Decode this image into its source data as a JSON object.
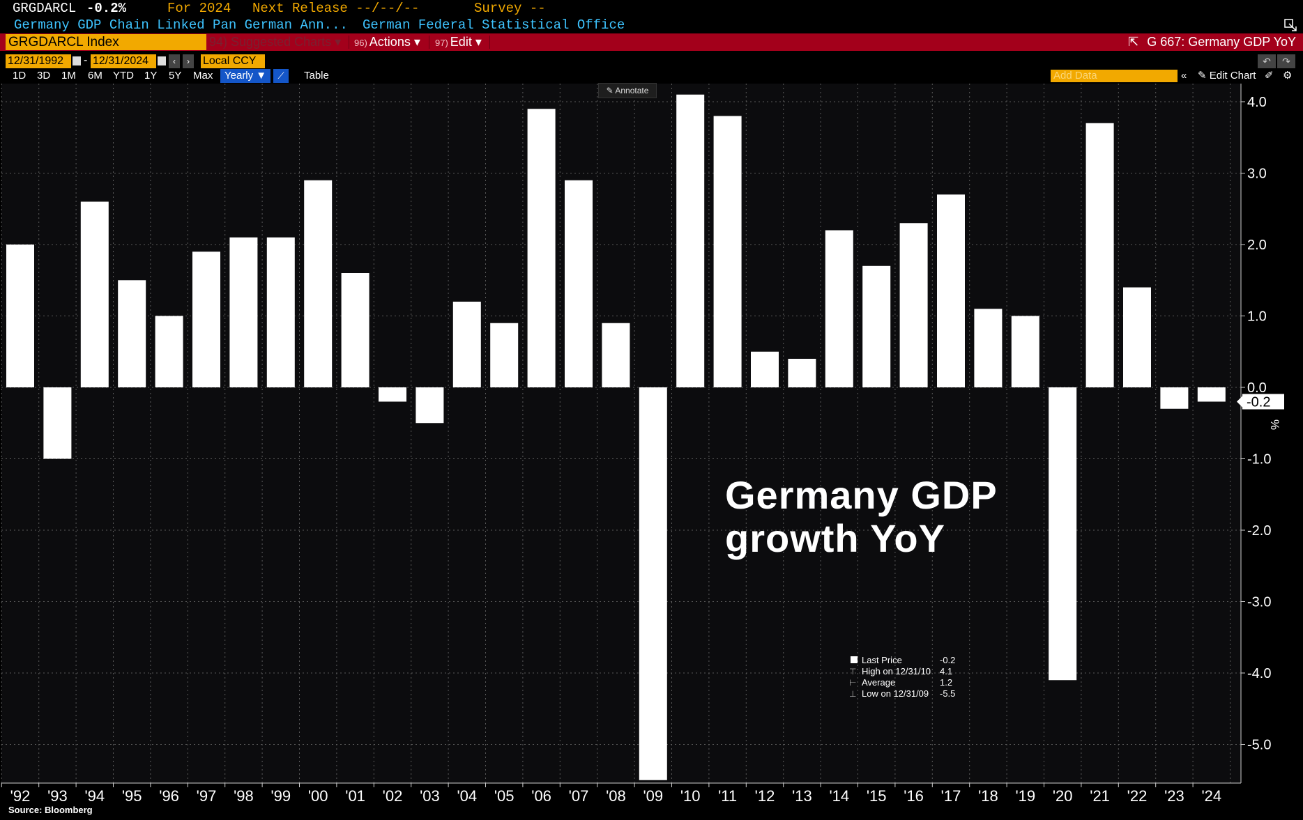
{
  "header": {
    "ticker": "GRGDARCL",
    "last_change": "-0.2%",
    "for_label": "For 2024",
    "next_release": "Next Release --/--/--",
    "survey": "Survey --",
    "description": "Germany GDP Chain Linked Pan German Ann...",
    "source_org": "German Federal Statistical Office"
  },
  "toolbar": {
    "ticker_box": "GRGDARCL Index",
    "suggested": "94) Suggested Charts  ▾",
    "actions_num": "96)",
    "actions_label": "Actions ▾",
    "edit_num": "97)",
    "edit_label": "Edit ▾",
    "page_ref": "G 667: Germany GDP YoY"
  },
  "dates": {
    "start": "12/31/1992",
    "dash": "-",
    "end": "12/31/2024",
    "currency": "Local CCY"
  },
  "periods": [
    "1D",
    "3D",
    "1M",
    "6M",
    "YTD",
    "1Y",
    "5Y",
    "Max"
  ],
  "period_selected": "Yearly ▼",
  "table_label": "Table",
  "add_data_placeholder": "Add Data",
  "edit_chart_label": "Edit Chart",
  "annotate_label": "Annotate",
  "source_label": "Source: Bloomberg",
  "unit_label": "%",
  "legend": [
    {
      "label": "Last Price",
      "value": "-0.2"
    },
    {
      "label": "High on 12/31/10",
      "value": "4.1"
    },
    {
      "label": "Average",
      "value": "1.2"
    },
    {
      "label": "Low on 12/31/09",
      "value": "-5.5"
    }
  ],
  "chart_data": {
    "type": "bar",
    "title": "Germany GDP growth YoY",
    "categories": [
      "'92",
      "'93",
      "'94",
      "'95",
      "'96",
      "'97",
      "'98",
      "'99",
      "'00",
      "'01",
      "'02",
      "'03",
      "'04",
      "'05",
      "'06",
      "'07",
      "'08",
      "'09",
      "'10",
      "'11",
      "'12",
      "'13",
      "'14",
      "'15",
      "'16",
      "'17",
      "'18",
      "'19",
      "'20",
      "'21",
      "'22",
      "'23",
      "'24"
    ],
    "values": [
      2.0,
      -1.0,
      2.6,
      1.5,
      1.0,
      1.9,
      2.1,
      2.1,
      2.9,
      1.6,
      -0.2,
      -0.5,
      1.2,
      0.9,
      3.9,
      2.9,
      0.9,
      -5.5,
      4.1,
      3.8,
      0.5,
      0.4,
      2.2,
      1.7,
      2.3,
      2.7,
      1.1,
      1.0,
      -4.1,
      3.7,
      1.4,
      -0.3,
      -0.2
    ],
    "ylim": [
      -5.5,
      4.3
    ],
    "yticks": [
      4.0,
      3.0,
      2.0,
      1.0,
      0.0,
      -1.0,
      -2.0,
      -3.0,
      -4.0,
      -5.0
    ],
    "last_value_label": "-0.2",
    "grid": true,
    "bar_color": "#ffffff",
    "background": "#0c0c0e"
  }
}
